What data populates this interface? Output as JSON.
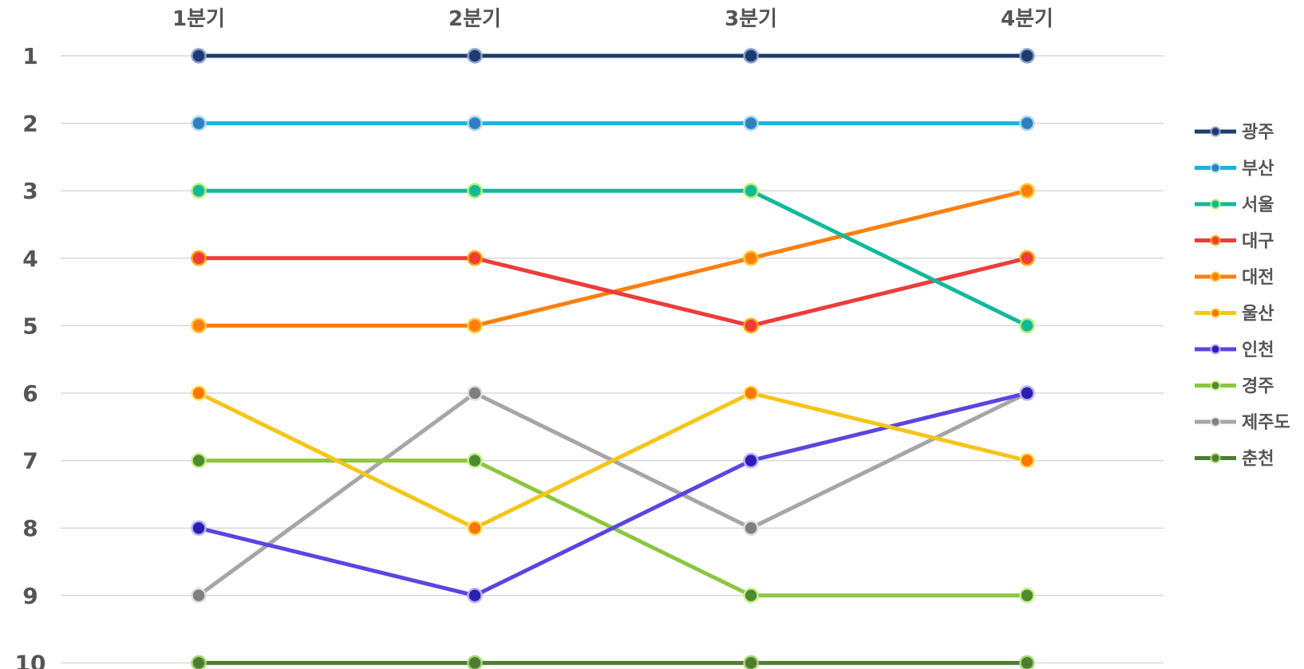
{
  "chart_data": {
    "type": "line",
    "title": "",
    "xlabel": "",
    "ylabel": "",
    "categories": [
      "1분기",
      "2분기",
      "3분기",
      "4분기"
    ],
    "y_ticks": [
      "1",
      "2",
      "3",
      "4",
      "5",
      "6",
      "7",
      "8",
      "9",
      "10"
    ],
    "ylim": [
      1,
      10
    ],
    "y_inverted": true,
    "grid": true,
    "legend_position": "right",
    "series": [
      {
        "name": "광주",
        "values": [
          1,
          1,
          1,
          1
        ],
        "color": "#1f3a6e",
        "marker_fill": "#1f3a6e",
        "marker_edge": "#8aa3cf"
      },
      {
        "name": "부산",
        "values": [
          2,
          2,
          2,
          2
        ],
        "color": "#19b3e0",
        "marker_fill": "#2f7fc1",
        "marker_edge": "#a8d8f0"
      },
      {
        "name": "서울",
        "values": [
          3,
          3,
          3,
          5
        ],
        "color": "#12b89a",
        "marker_fill": "#12b89a",
        "marker_edge": "#b6ee7a"
      },
      {
        "name": "대구",
        "values": [
          4,
          4,
          5,
          4
        ],
        "color": "#ee3b3b",
        "marker_fill": "#ee3b3b",
        "marker_edge": "#ffa500"
      },
      {
        "name": "대전",
        "values": [
          5,
          5,
          4,
          3
        ],
        "color": "#ff7f0e",
        "marker_fill": "#ff7f0e",
        "marker_edge": "#ffc93c"
      },
      {
        "name": "울산",
        "values": [
          6,
          8,
          6,
          7
        ],
        "color": "#f5c518",
        "marker_fill": "#ff7700",
        "marker_edge": "#ffe066"
      },
      {
        "name": "인천",
        "values": [
          8,
          9,
          7,
          6
        ],
        "color": "#5b45e0",
        "marker_fill": "#2a1fb0",
        "marker_edge": "#b8b0ff"
      },
      {
        "name": "경주",
        "values": [
          7,
          7,
          9,
          9
        ],
        "color": "#8cc63f",
        "marker_fill": "#4e8a2e",
        "marker_edge": "#c8f08a"
      },
      {
        "name": "제주도",
        "values": [
          9,
          6,
          8,
          6
        ],
        "color": "#a6a6a6",
        "marker_fill": "#7f7f7f",
        "marker_edge": "#dedede"
      },
      {
        "name": "춘천",
        "values": [
          10,
          10,
          10,
          10
        ],
        "color": "#4e7d32",
        "marker_fill": "#4e7d32",
        "marker_edge": "#a8d878"
      }
    ]
  }
}
